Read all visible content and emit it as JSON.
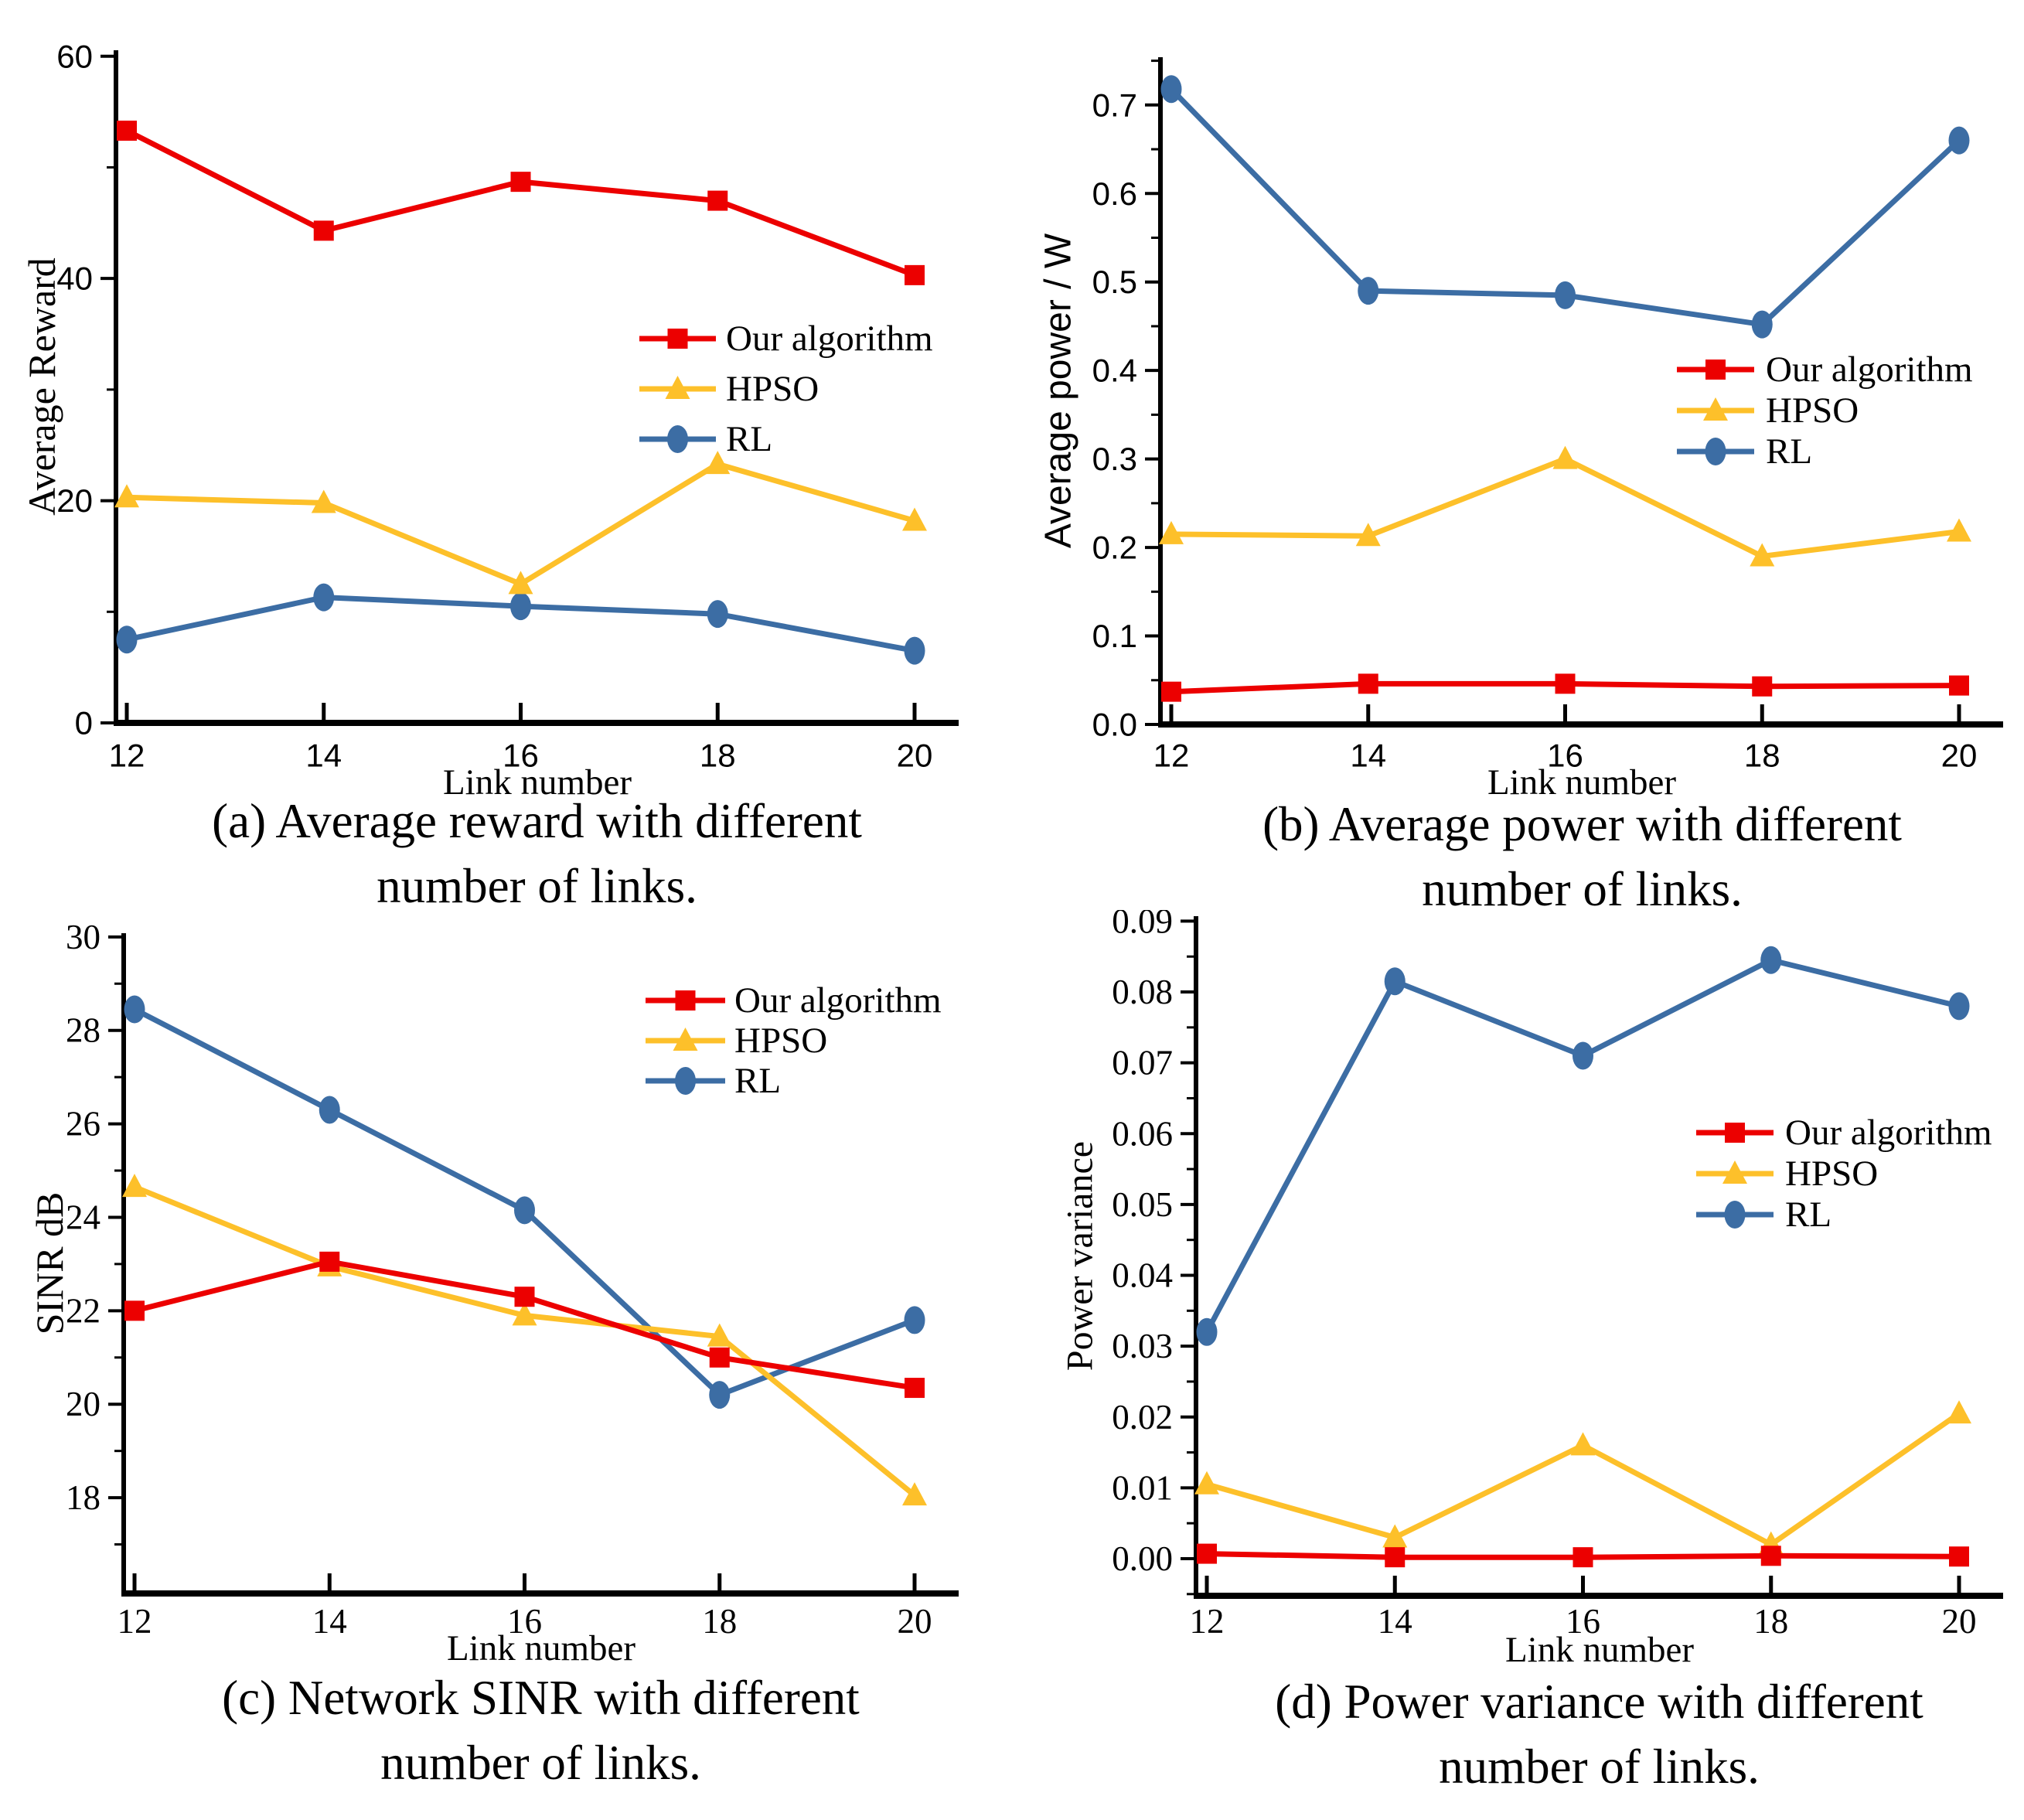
{
  "figure": {
    "background": "#ffffff",
    "series_names": [
      "Our algorithm",
      "HPSO",
      "RL"
    ],
    "series_colors": {
      "our_algorithm": "#EC0000",
      "hpso": "#FDC02A",
      "rl": "#3C6DA4"
    },
    "series_markers": {
      "our_algorithm": "square-marker-icon",
      "hpso": "triangle-marker-icon",
      "rl": "circle-marker-icon"
    }
  },
  "chart_data": [
    {
      "type": "line",
      "title": "",
      "xlabel": "Link number",
      "ylabel": "Average Reward",
      "x": [
        12,
        14,
        16,
        18,
        20
      ],
      "xtick_labels": [
        "12",
        "14",
        "16",
        "18",
        "20"
      ],
      "xlim": [
        12,
        20
      ],
      "ylim": [
        0,
        60
      ],
      "yticks": [
        0,
        20,
        40,
        60
      ],
      "ytick_labels": [
        "0",
        "20",
        "40",
        "60"
      ],
      "grid": false,
      "legend_position": "right-center",
      "series": [
        {
          "name": "Our algorithm",
          "color": "#EC0000",
          "marker": "square",
          "values": [
            53.3,
            44.3,
            48.7,
            47.0,
            40.3
          ]
        },
        {
          "name": "HPSO",
          "color": "#FDC02A",
          "marker": "triangle",
          "values": [
            20.3,
            19.8,
            12.5,
            23.3,
            18.2
          ]
        },
        {
          "name": "RL",
          "color": "#3C6DA4",
          "marker": "circle",
          "values": [
            7.5,
            11.3,
            10.5,
            9.8,
            6.5
          ]
        }
      ],
      "caption_line1": "(a) Average reward with different",
      "caption_line2": "number of links.",
      "caption": "(a) Average reward with different number of links."
    },
    {
      "type": "line",
      "title": "",
      "xlabel": "Link number",
      "ylabel": "Average power / W",
      "x": [
        12,
        14,
        16,
        18,
        20
      ],
      "xtick_labels": [
        "12",
        "14",
        "16",
        "18",
        "20"
      ],
      "xlim": [
        12,
        20
      ],
      "ylim": [
        0,
        0.75
      ],
      "yticks": [
        0,
        0.1,
        0.2,
        0.3,
        0.4,
        0.5,
        0.6,
        0.7
      ],
      "ytick_labels": [
        "0.0",
        "0.1",
        "0.2",
        "0.3",
        "0.4",
        "0.5",
        "0.6",
        "0.7"
      ],
      "grid": false,
      "legend_position": "right-center",
      "series": [
        {
          "name": "Our algorithm",
          "color": "#EC0000",
          "marker": "square",
          "values": [
            0.037,
            0.046,
            0.046,
            0.043,
            0.044
          ]
        },
        {
          "name": "HPSO",
          "color": "#FDC02A",
          "marker": "triangle",
          "values": [
            0.215,
            0.213,
            0.3,
            0.19,
            0.218
          ]
        },
        {
          "name": "RL",
          "color": "#3C6DA4",
          "marker": "circle",
          "values": [
            0.718,
            0.49,
            0.485,
            0.452,
            0.66
          ]
        }
      ],
      "caption_line1": "(b) Average power with different",
      "caption_line2": "number of links.",
      "caption": "(b) Average power with different number of links."
    },
    {
      "type": "line",
      "title": "",
      "xlabel": "Link number",
      "ylabel": "SINR dB",
      "x": [
        12,
        14,
        16,
        18,
        20
      ],
      "xtick_labels": [
        "12",
        "14",
        "16",
        "18",
        "20"
      ],
      "xlim": [
        12,
        20
      ],
      "ylim": [
        18,
        30
      ],
      "yticks": [
        18,
        20,
        22,
        24,
        26,
        28,
        30
      ],
      "ytick_labels": [
        "18",
        "20",
        "22",
        "24",
        "26",
        "28",
        "30"
      ],
      "grid": false,
      "legend_position": "right-upper",
      "series": [
        {
          "name": "Our algorithm",
          "color": "#EC0000",
          "marker": "square",
          "values": [
            22.0,
            23.05,
            22.3,
            21.0,
            20.35
          ]
        },
        {
          "name": "HPSO",
          "color": "#FDC02A",
          "marker": "triangle",
          "values": [
            24.65,
            22.95,
            21.9,
            21.45,
            18.05
          ]
        },
        {
          "name": "RL",
          "color": "#3C6DA4",
          "marker": "circle",
          "values": [
            28.45,
            26.3,
            24.15,
            20.2,
            21.8
          ]
        }
      ],
      "caption_line1": "(c) Network SINR with different",
      "caption_line2": "number of links.",
      "caption": "(c) Network SINR with different number of links."
    },
    {
      "type": "line",
      "title": "",
      "xlabel": "Link number",
      "ylabel": "Power variance",
      "x": [
        12,
        14,
        16,
        18,
        20
      ],
      "xtick_labels": [
        "12",
        "14",
        "16",
        "18",
        "20"
      ],
      "xlim": [
        12,
        20
      ],
      "ylim": [
        0,
        0.09
      ],
      "yticks": [
        0,
        0.01,
        0.02,
        0.03,
        0.04,
        0.05,
        0.06,
        0.07,
        0.08,
        0.09
      ],
      "ytick_labels": [
        "0.00",
        "0.01",
        "0.02",
        "0.03",
        "0.04",
        "0.05",
        "0.06",
        "0.07",
        "0.08",
        "0.09"
      ],
      "grid": false,
      "legend_position": "right-center",
      "series": [
        {
          "name": "Our algorithm",
          "color": "#EC0000",
          "marker": "square",
          "values": [
            0.0007,
            0.0002,
            0.0002,
            0.0004,
            0.0003
          ]
        },
        {
          "name": "HPSO",
          "color": "#FDC02A",
          "marker": "triangle",
          "values": [
            0.0105,
            0.003,
            0.016,
            0.002,
            0.0205
          ]
        },
        {
          "name": "RL",
          "color": "#3C6DA4",
          "marker": "circle",
          "values": [
            0.032,
            0.0815,
            0.071,
            0.0845,
            0.078
          ]
        }
      ],
      "caption_line1": "(d) Power variance with different",
      "caption_line2": "number of links.",
      "caption": "(d) Power variance with different number of links."
    }
  ]
}
